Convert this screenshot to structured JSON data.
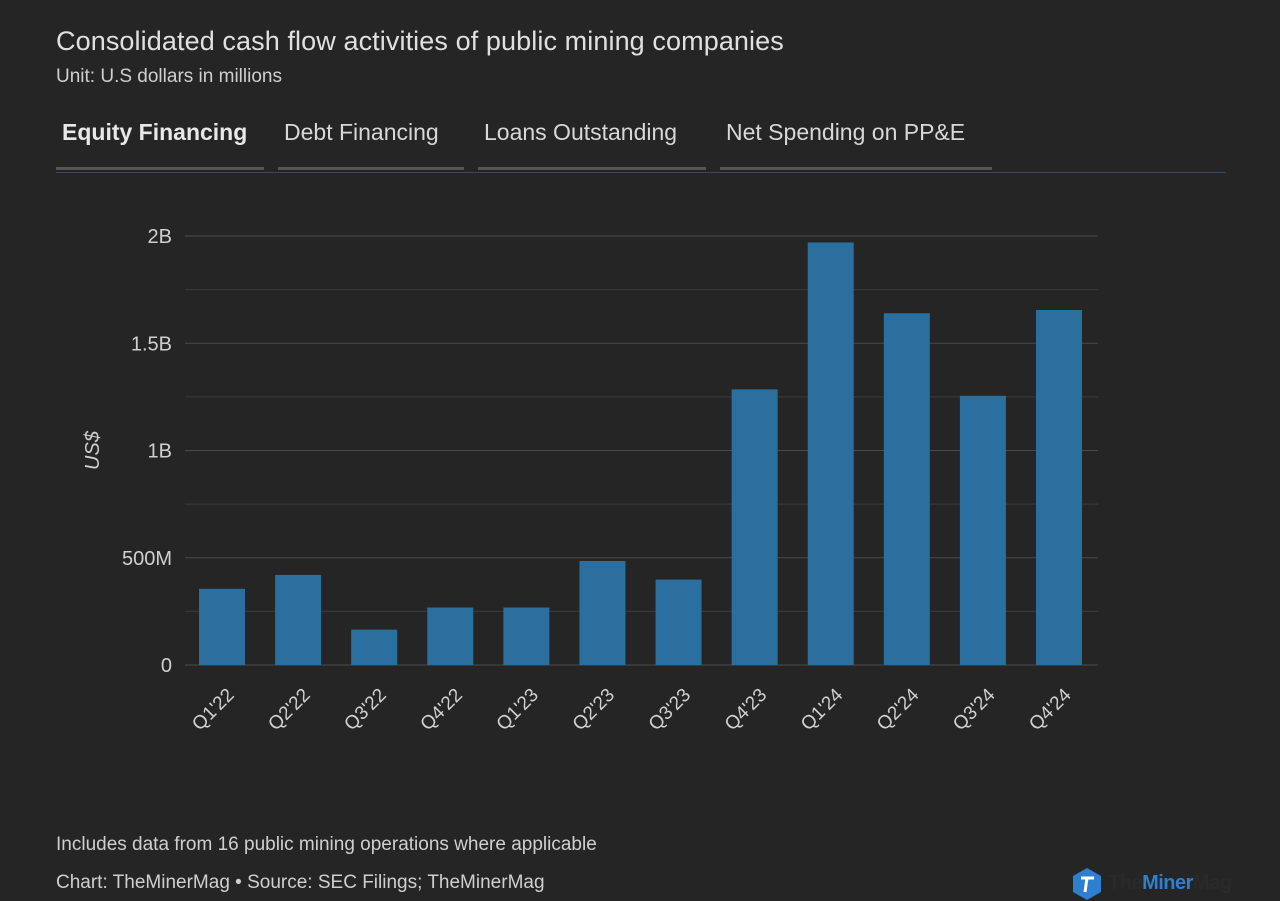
{
  "header": {
    "title": "Consolidated cash flow activities of public mining companies",
    "subtitle": "Unit: U.S dollars in millions"
  },
  "tabs": [
    {
      "label": "Equity Financing",
      "active": true
    },
    {
      "label": "Debt Financing",
      "active": false
    },
    {
      "label": "Loans Outstanding",
      "active": false
    },
    {
      "label": "Net Spending on PP&E",
      "active": false
    }
  ],
  "chart_data": {
    "type": "bar",
    "title": "",
    "xlabel": "",
    "ylabel": "US$",
    "categories": [
      "Q1'22",
      "Q2'22",
      "Q3'22",
      "Q4'22",
      "Q1'23",
      "Q2'23",
      "Q3'23",
      "Q4'23",
      "Q1'24",
      "Q2'24",
      "Q3'24",
      "Q4'24"
    ],
    "values": [
      355,
      420,
      165,
      268,
      268,
      485,
      398,
      1285,
      1970,
      1640,
      1255,
      1655
    ],
    "ylim": [
      0,
      2000
    ],
    "yticks": [
      0,
      500,
      1000,
      1500,
      2000
    ],
    "ytick_labels": [
      "0",
      "500M",
      "1B",
      "1.5B",
      "2B"
    ],
    "grid": true,
    "bar_color": "#2b6f9e"
  },
  "footer": {
    "note": "Includes data from 16 public mining operations where applicable",
    "credit": "Chart: TheMinerMag • Source: SEC Filings; TheMinerMag",
    "logo_parts": [
      "The",
      "Miner",
      "Mag"
    ]
  }
}
